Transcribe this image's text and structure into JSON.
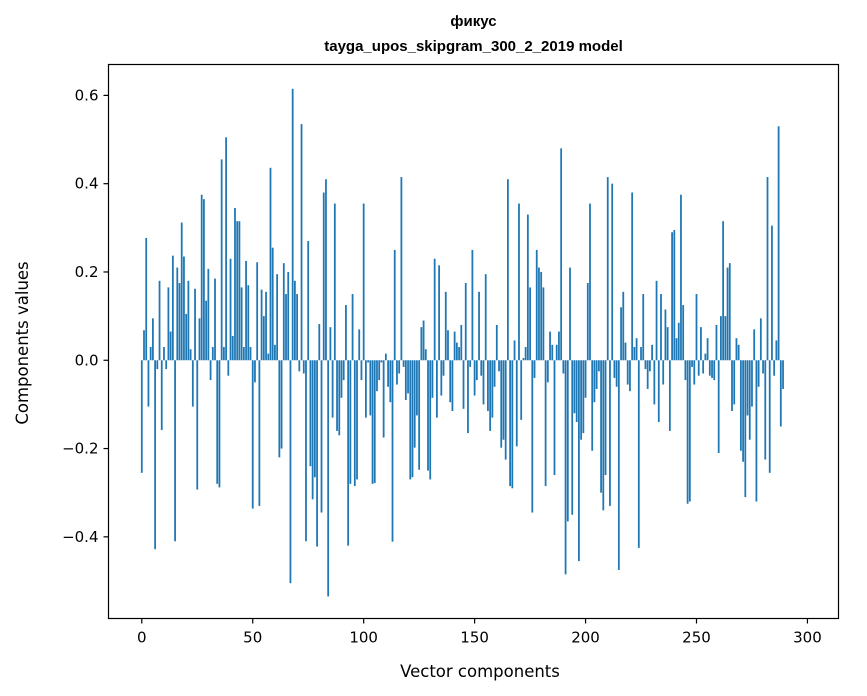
{
  "chart_data": {
    "type": "bar",
    "title_line1": "фикус",
    "title_line2": "tayga_upos_skipgram_300_2_2019 model",
    "xlabel": "Vector components",
    "ylabel": "Components values",
    "xlim": [
      -15,
      314
    ],
    "ylim": [
      -0.585,
      0.67
    ],
    "xticks": [
      0,
      50,
      100,
      150,
      200,
      250,
      300
    ],
    "xtick_labels": [
      "0",
      "50",
      "100",
      "150",
      "200",
      "250",
      "300"
    ],
    "yticks": [
      -0.4,
      -0.2,
      0.0,
      0.2,
      0.4,
      0.6
    ],
    "ytick_labels": [
      "−0.4",
      "−0.2",
      "0.0",
      "0.2",
      "0.4",
      "0.6"
    ],
    "bar_color": "#1f77b4",
    "values": [
      -0.255,
      0.068,
      0.277,
      -0.105,
      0.03,
      0.095,
      -0.428,
      -0.02,
      0.18,
      -0.158,
      0.03,
      -0.02,
      0.165,
      0.065,
      0.237,
      -0.41,
      0.21,
      0.175,
      0.312,
      0.235,
      0.105,
      0.18,
      0.025,
      -0.105,
      0.162,
      -0.293,
      0.095,
      0.375,
      0.365,
      0.135,
      0.207,
      -0.045,
      0.03,
      0.185,
      -0.28,
      -0.288,
      0.455,
      0.03,
      0.505,
      -0.035,
      0.23,
      0.055,
      0.345,
      0.315,
      0.315,
      0.165,
      0.03,
      0.225,
      0.17,
      0.03,
      -0.336,
      -0.05,
      0.222,
      -0.33,
      0.16,
      0.1,
      0.155,
      0.015,
      0.436,
      0.255,
      0.035,
      0.195,
      -0.22,
      -0.2,
      0.22,
      0.15,
      0.2,
      -0.505,
      0.615,
      0.18,
      0.15,
      -0.025,
      0.535,
      -0.03,
      -0.41,
      0.27,
      -0.24,
      -0.315,
      -0.265,
      -0.422,
      0.082,
      -0.345,
      0.38,
      0.41,
      -0.535,
      0.075,
      -0.13,
      0.355,
      -0.16,
      -0.17,
      -0.085,
      -0.045,
      0.125,
      -0.42,
      -0.28,
      0.15,
      -0.285,
      -0.27,
      0.07,
      -0.045,
      0.355,
      -0.13,
      -0.005,
      -0.125,
      -0.28,
      -0.278,
      -0.07,
      -0.045,
      -0.005,
      -0.175,
      0.015,
      -0.06,
      -0.095,
      -0.411,
      0.25,
      -0.055,
      -0.03,
      0.415,
      -0.015,
      -0.09,
      -0.075,
      -0.27,
      -0.265,
      -0.198,
      -0.125,
      -0.248,
      0.075,
      0.09,
      0.025,
      -0.25,
      -0.27,
      -0.085,
      0.23,
      -0.13,
      0.215,
      -0.08,
      -0.035,
      0.155,
      0.068,
      -0.095,
      -0.115,
      0.065,
      0.04,
      0.03,
      0.08,
      -0.11,
      0.175,
      -0.165,
      -0.015,
      0.25,
      -0.08,
      -0.045,
      0.155,
      -0.035,
      -0.1,
      0.195,
      -0.115,
      -0.16,
      -0.13,
      -0.06,
      0.08,
      -0.025,
      -0.198,
      -0.18,
      -0.225,
      0.41,
      -0.285,
      -0.29,
      0.045,
      -0.195,
      0.355,
      -0.135,
      0.005,
      0.03,
      0.33,
      0.165,
      -0.345,
      -0.04,
      0.25,
      0.21,
      0.2,
      0.165,
      -0.285,
      -0.05,
      0.065,
      0.035,
      -0.26,
      0.035,
      0.065,
      0.48,
      -0.03,
      -0.485,
      -0.365,
      0.21,
      -0.35,
      -0.12,
      -0.14,
      -0.455,
      -0.18,
      -0.165,
      -0.085,
      0.175,
      0.355,
      -0.205,
      -0.095,
      -0.065,
      -0.025,
      -0.3,
      -0.34,
      -0.26,
      0.415,
      -0.33,
      0.4,
      -0.04,
      -0.06,
      -0.475,
      0.12,
      0.155,
      0.04,
      -0.055,
      -0.07,
      0.38,
      0.03,
      0.05,
      -0.425,
      0.03,
      0.15,
      -0.02,
      -0.065,
      -0.025,
      0.035,
      -0.1,
      0.18,
      -0.14,
      0.15,
      -0.055,
      0.115,
      0.075,
      -0.16,
      0.29,
      0.295,
      0.05,
      0.085,
      0.375,
      0.125,
      -0.045,
      -0.325,
      -0.32,
      -0.015,
      -0.055,
      0.15,
      -0.035,
      0.075,
      -0.03,
      0.015,
      0.05,
      -0.035,
      -0.04,
      -0.045,
      0.08,
      -0.21,
      0.1,
      0.315,
      0.1,
      0.21,
      0.22,
      -0.115,
      -0.1,
      0.05,
      0.035,
      -0.205,
      -0.23,
      -0.31,
      -0.125,
      -0.18,
      -0.105,
      0.07,
      -0.32,
      -0.06,
      0.095,
      -0.03,
      -0.225,
      0.415,
      -0.255,
      0.305,
      -0.035,
      0.045,
      0.53,
      -0.15,
      -0.065
    ]
  }
}
